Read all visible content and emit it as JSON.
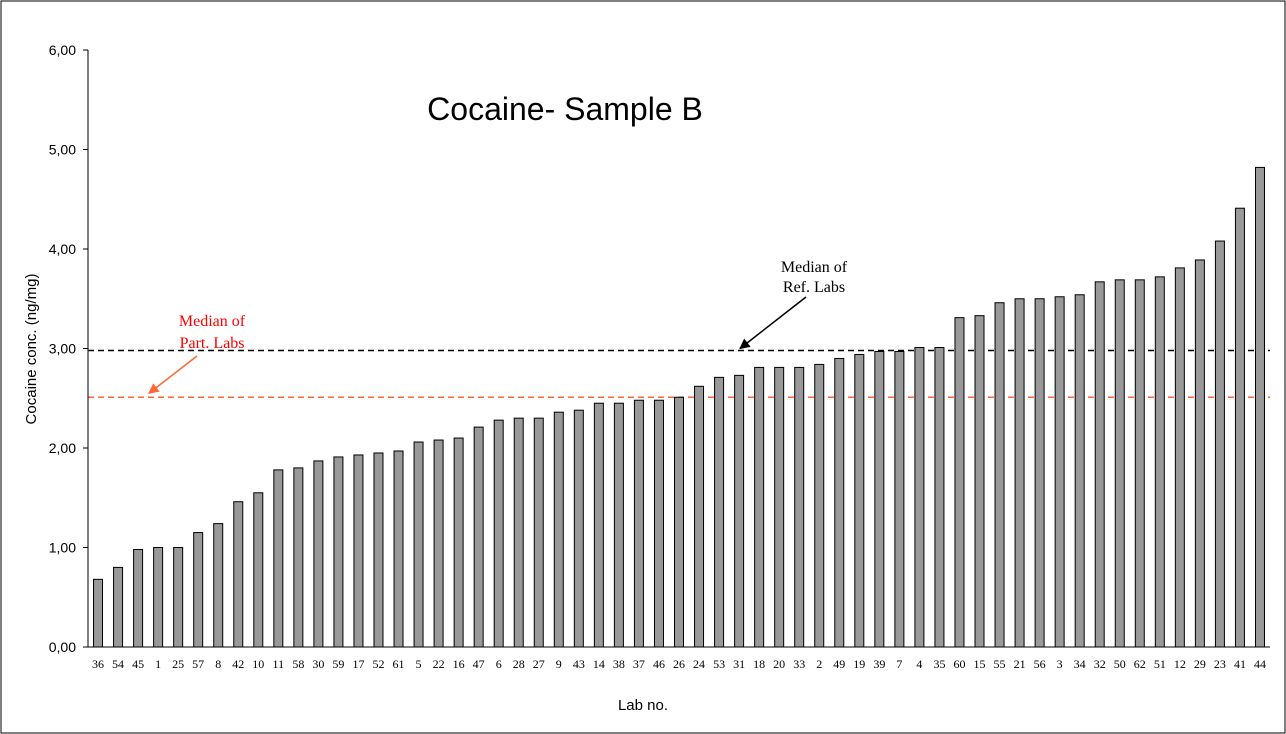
{
  "chart_data": {
    "type": "bar",
    "title": "Cocaine- Sample B",
    "xlabel": "Lab no.",
    "ylabel": "Cocaine conc. (ng/mg)",
    "ylim": [
      0,
      6
    ],
    "yticks": [
      "0,00",
      "1,00",
      "2,00",
      "3,00",
      "4,00",
      "5,00",
      "6,00"
    ],
    "grid": false,
    "legend": "none",
    "bar_color": "#999999",
    "categories": [
      "36",
      "54",
      "45",
      "1",
      "25",
      "57",
      "8",
      "42",
      "10",
      "11",
      "58",
      "30",
      "59",
      "17",
      "52",
      "61",
      "5",
      "22",
      "16",
      "47",
      "6",
      "28",
      "27",
      "9",
      "43",
      "14",
      "38",
      "37",
      "46",
      "26",
      "24",
      "53",
      "31",
      "18",
      "20",
      "33",
      "2",
      "49",
      "19",
      "39",
      "7",
      "4",
      "35",
      "60",
      "15",
      "55",
      "21",
      "56",
      "3",
      "34",
      "32",
      "50",
      "62",
      "51",
      "12",
      "29",
      "23",
      "41",
      "44"
    ],
    "values": [
      0.68,
      0.8,
      0.98,
      1.0,
      1.0,
      1.15,
      1.24,
      1.46,
      1.55,
      1.78,
      1.8,
      1.87,
      1.91,
      1.93,
      1.95,
      1.97,
      2.06,
      2.08,
      2.1,
      2.21,
      2.28,
      2.3,
      2.3,
      2.36,
      2.38,
      2.45,
      2.45,
      2.48,
      2.48,
      2.51,
      2.62,
      2.71,
      2.73,
      2.81,
      2.81,
      2.81,
      2.84,
      2.9,
      2.94,
      2.97,
      2.97,
      3.01,
      3.01,
      3.31,
      3.33,
      3.46,
      3.5,
      3.5,
      3.52,
      3.54,
      3.67,
      3.69,
      3.69,
      3.72,
      3.81,
      3.89,
      4.08,
      4.41,
      4.82
    ],
    "reference_lines": [
      {
        "value": 2.98,
        "color": "#000000",
        "label_lines": [
          "Median of",
          "Ref. Labs"
        ]
      },
      {
        "value": 2.51,
        "color": "#ff6633",
        "label_lines": [
          "Median of",
          "Part. Labs"
        ]
      }
    ],
    "annotation_colors": {
      "ref": "#000000",
      "part": "#ff0000",
      "part_arrow": "#ff6633"
    }
  }
}
